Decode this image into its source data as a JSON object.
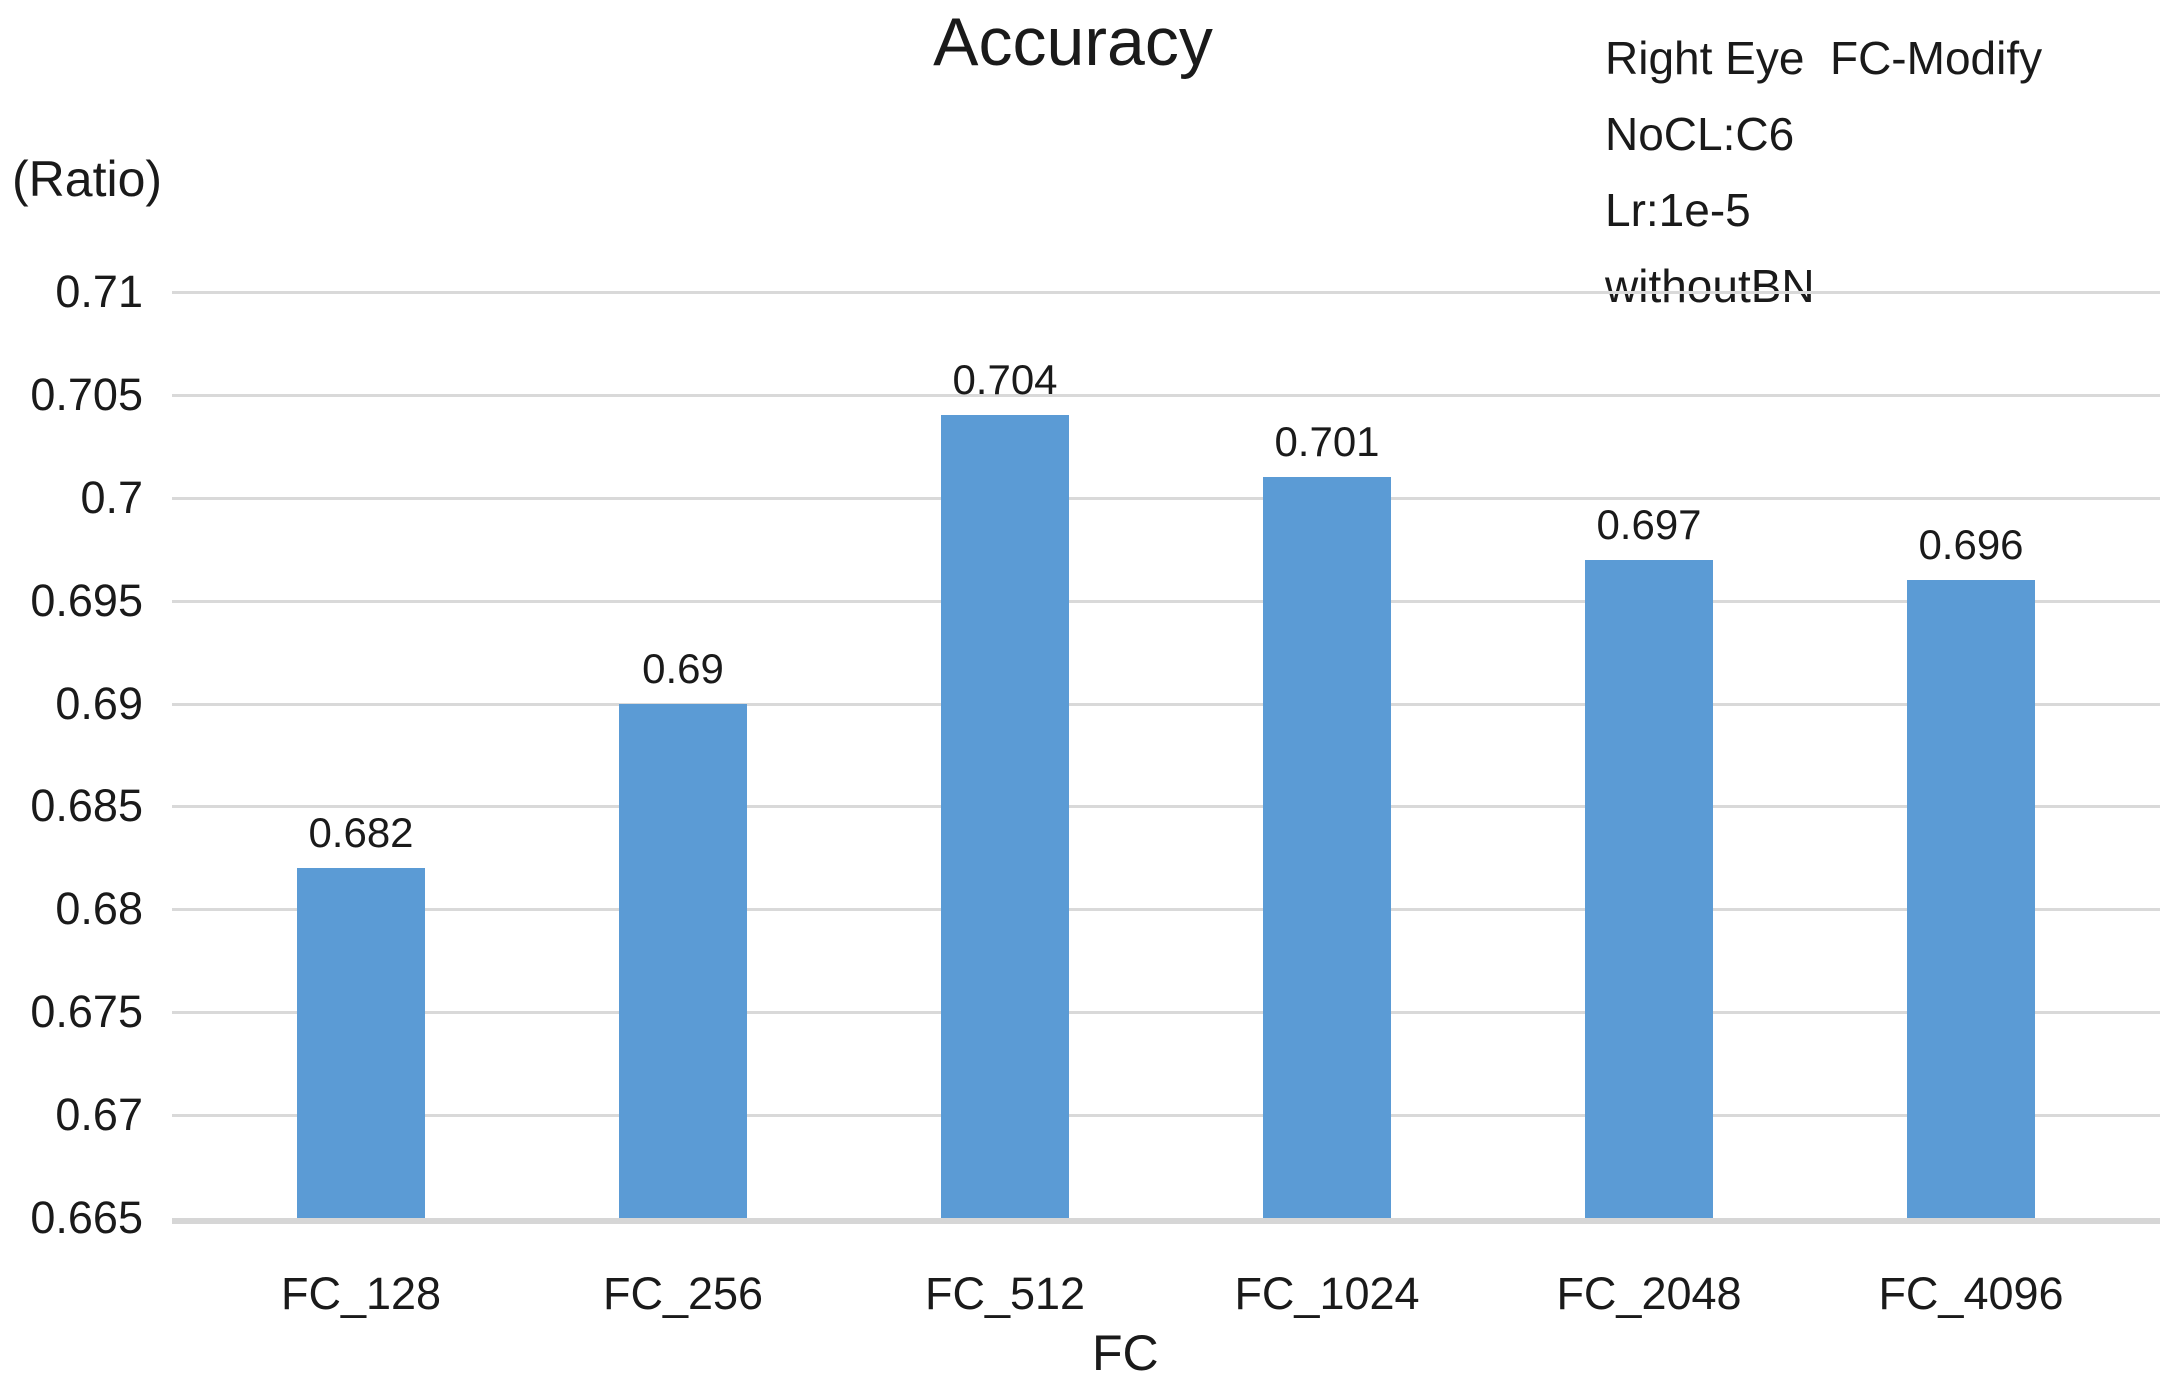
{
  "chart_data": {
    "type": "bar",
    "title": "Accuracy",
    "annotation_lines": [
      "Right Eye  FC-Modify",
      "NoCL:C6",
      "Lr:1e-5",
      "withoutBN"
    ],
    "y_axis_unit_label": "(Ratio)",
    "xlabel": "FC",
    "ylabel": "",
    "categories": [
      "FC_128",
      "FC_256",
      "FC_512",
      "FC_1024",
      "FC_2048",
      "FC_4096"
    ],
    "values": [
      0.682,
      0.69,
      0.704,
      0.701,
      0.697,
      0.696
    ],
    "value_labels": [
      "0.682",
      "0.69",
      "0.704",
      "0.701",
      "0.697",
      "0.696"
    ],
    "ylim": [
      0.665,
      0.71
    ],
    "ytick_step": 0.005,
    "yticks": [
      0.71,
      0.705,
      0.7,
      0.695,
      0.69,
      0.685,
      0.68,
      0.675,
      0.67,
      0.665
    ],
    "ytick_labels": [
      "0.71",
      "0.705",
      "0.7",
      "0.695",
      "0.69",
      "0.685",
      "0.68",
      "0.675",
      "0.67",
      "0.665"
    ],
    "grid": true,
    "legend_position": "none",
    "colors": {
      "bar": "#5B9BD5",
      "gridline": "#D9D9D9",
      "axis_line": "#D6D6D6",
      "text": "#1A1A1A"
    }
  }
}
